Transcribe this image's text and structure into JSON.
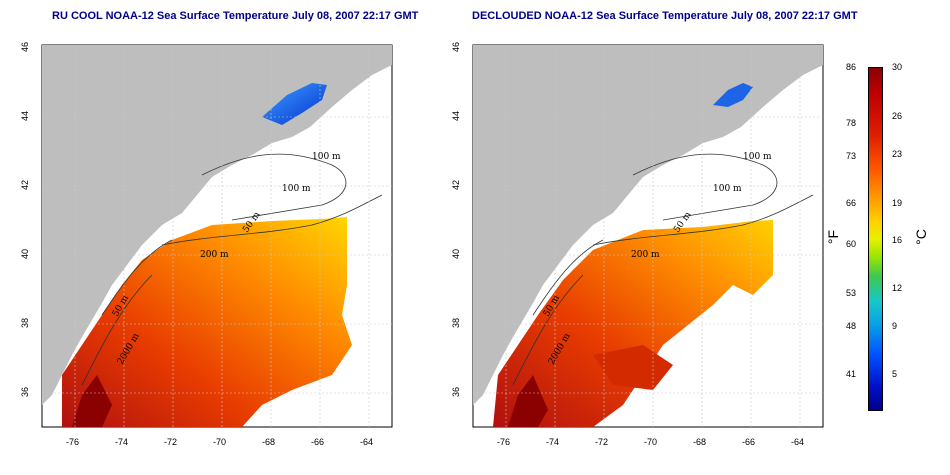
{
  "titles": {
    "left": "RU COOL NOAA-12 Sea Surface Temperature July 08, 2007 22:17 GMT",
    "right": "DECLOUDED NOAA-12 Sea Surface Temperature July 08, 2007 22:17 GMT"
  },
  "axes": {
    "x_ticks": [
      "-76",
      "-74",
      "-72",
      "-70",
      "-68",
      "-66",
      "-64"
    ],
    "y_ticks": [
      "46",
      "44",
      "42",
      "40",
      "38",
      "36"
    ]
  },
  "contour_labels": [
    "100 m",
    "100 m",
    "50 m",
    "200 m",
    "50 m",
    "2000 m"
  ],
  "colorbar": {
    "fahrenheit_ticks": [
      "86",
      "78",
      "73",
      "66",
      "60",
      "53",
      "48",
      "41"
    ],
    "celsius_ticks": [
      "30",
      "26",
      "23",
      "19",
      "16",
      "12",
      "9",
      "5"
    ],
    "fahrenheit_unit": "°F",
    "celsius_unit": "°C"
  },
  "colors": {
    "land": "#bebebe",
    "title": "#00008b",
    "warm": "#e63a00",
    "cool": "#1e64e6"
  }
}
